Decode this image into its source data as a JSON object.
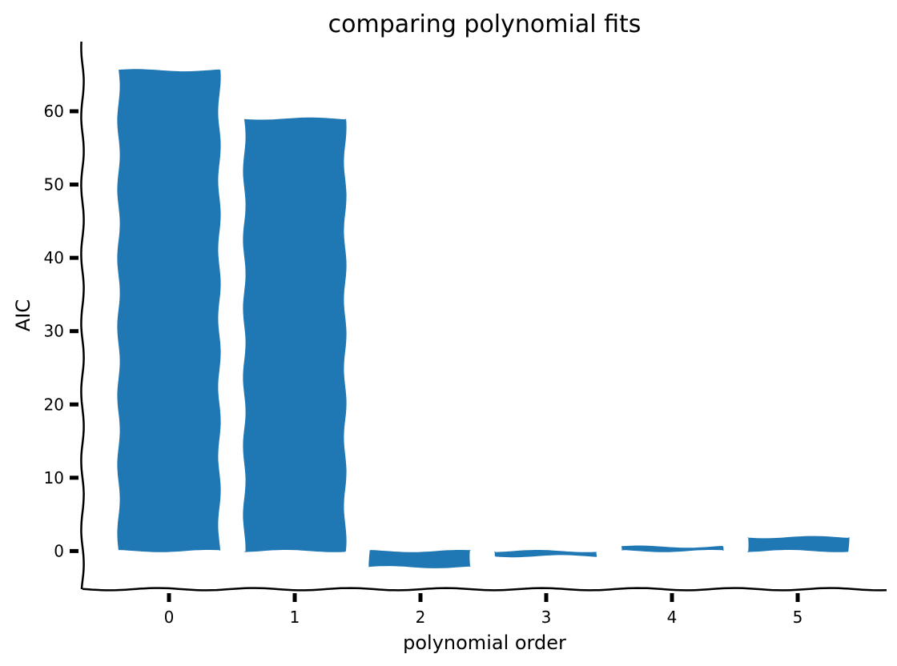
{
  "chart_data": {
    "type": "bar",
    "title": "comparing polynomial fits",
    "xlabel": "polynomial order",
    "ylabel": "AIC",
    "categories": [
      "0",
      "1",
      "2",
      "3",
      "4",
      "5"
    ],
    "values": [
      65.6,
      59.0,
      -2.2,
      -0.7,
      0.6,
      1.9
    ],
    "ylim": [
      -5.2,
      69.5
    ],
    "yticks": [
      0,
      10,
      20,
      30,
      40,
      50,
      60
    ],
    "grid": false,
    "legend": "none",
    "style": "hand-drawn",
    "colors": {
      "bar": "#1f77b4",
      "axis": "#000000"
    }
  }
}
